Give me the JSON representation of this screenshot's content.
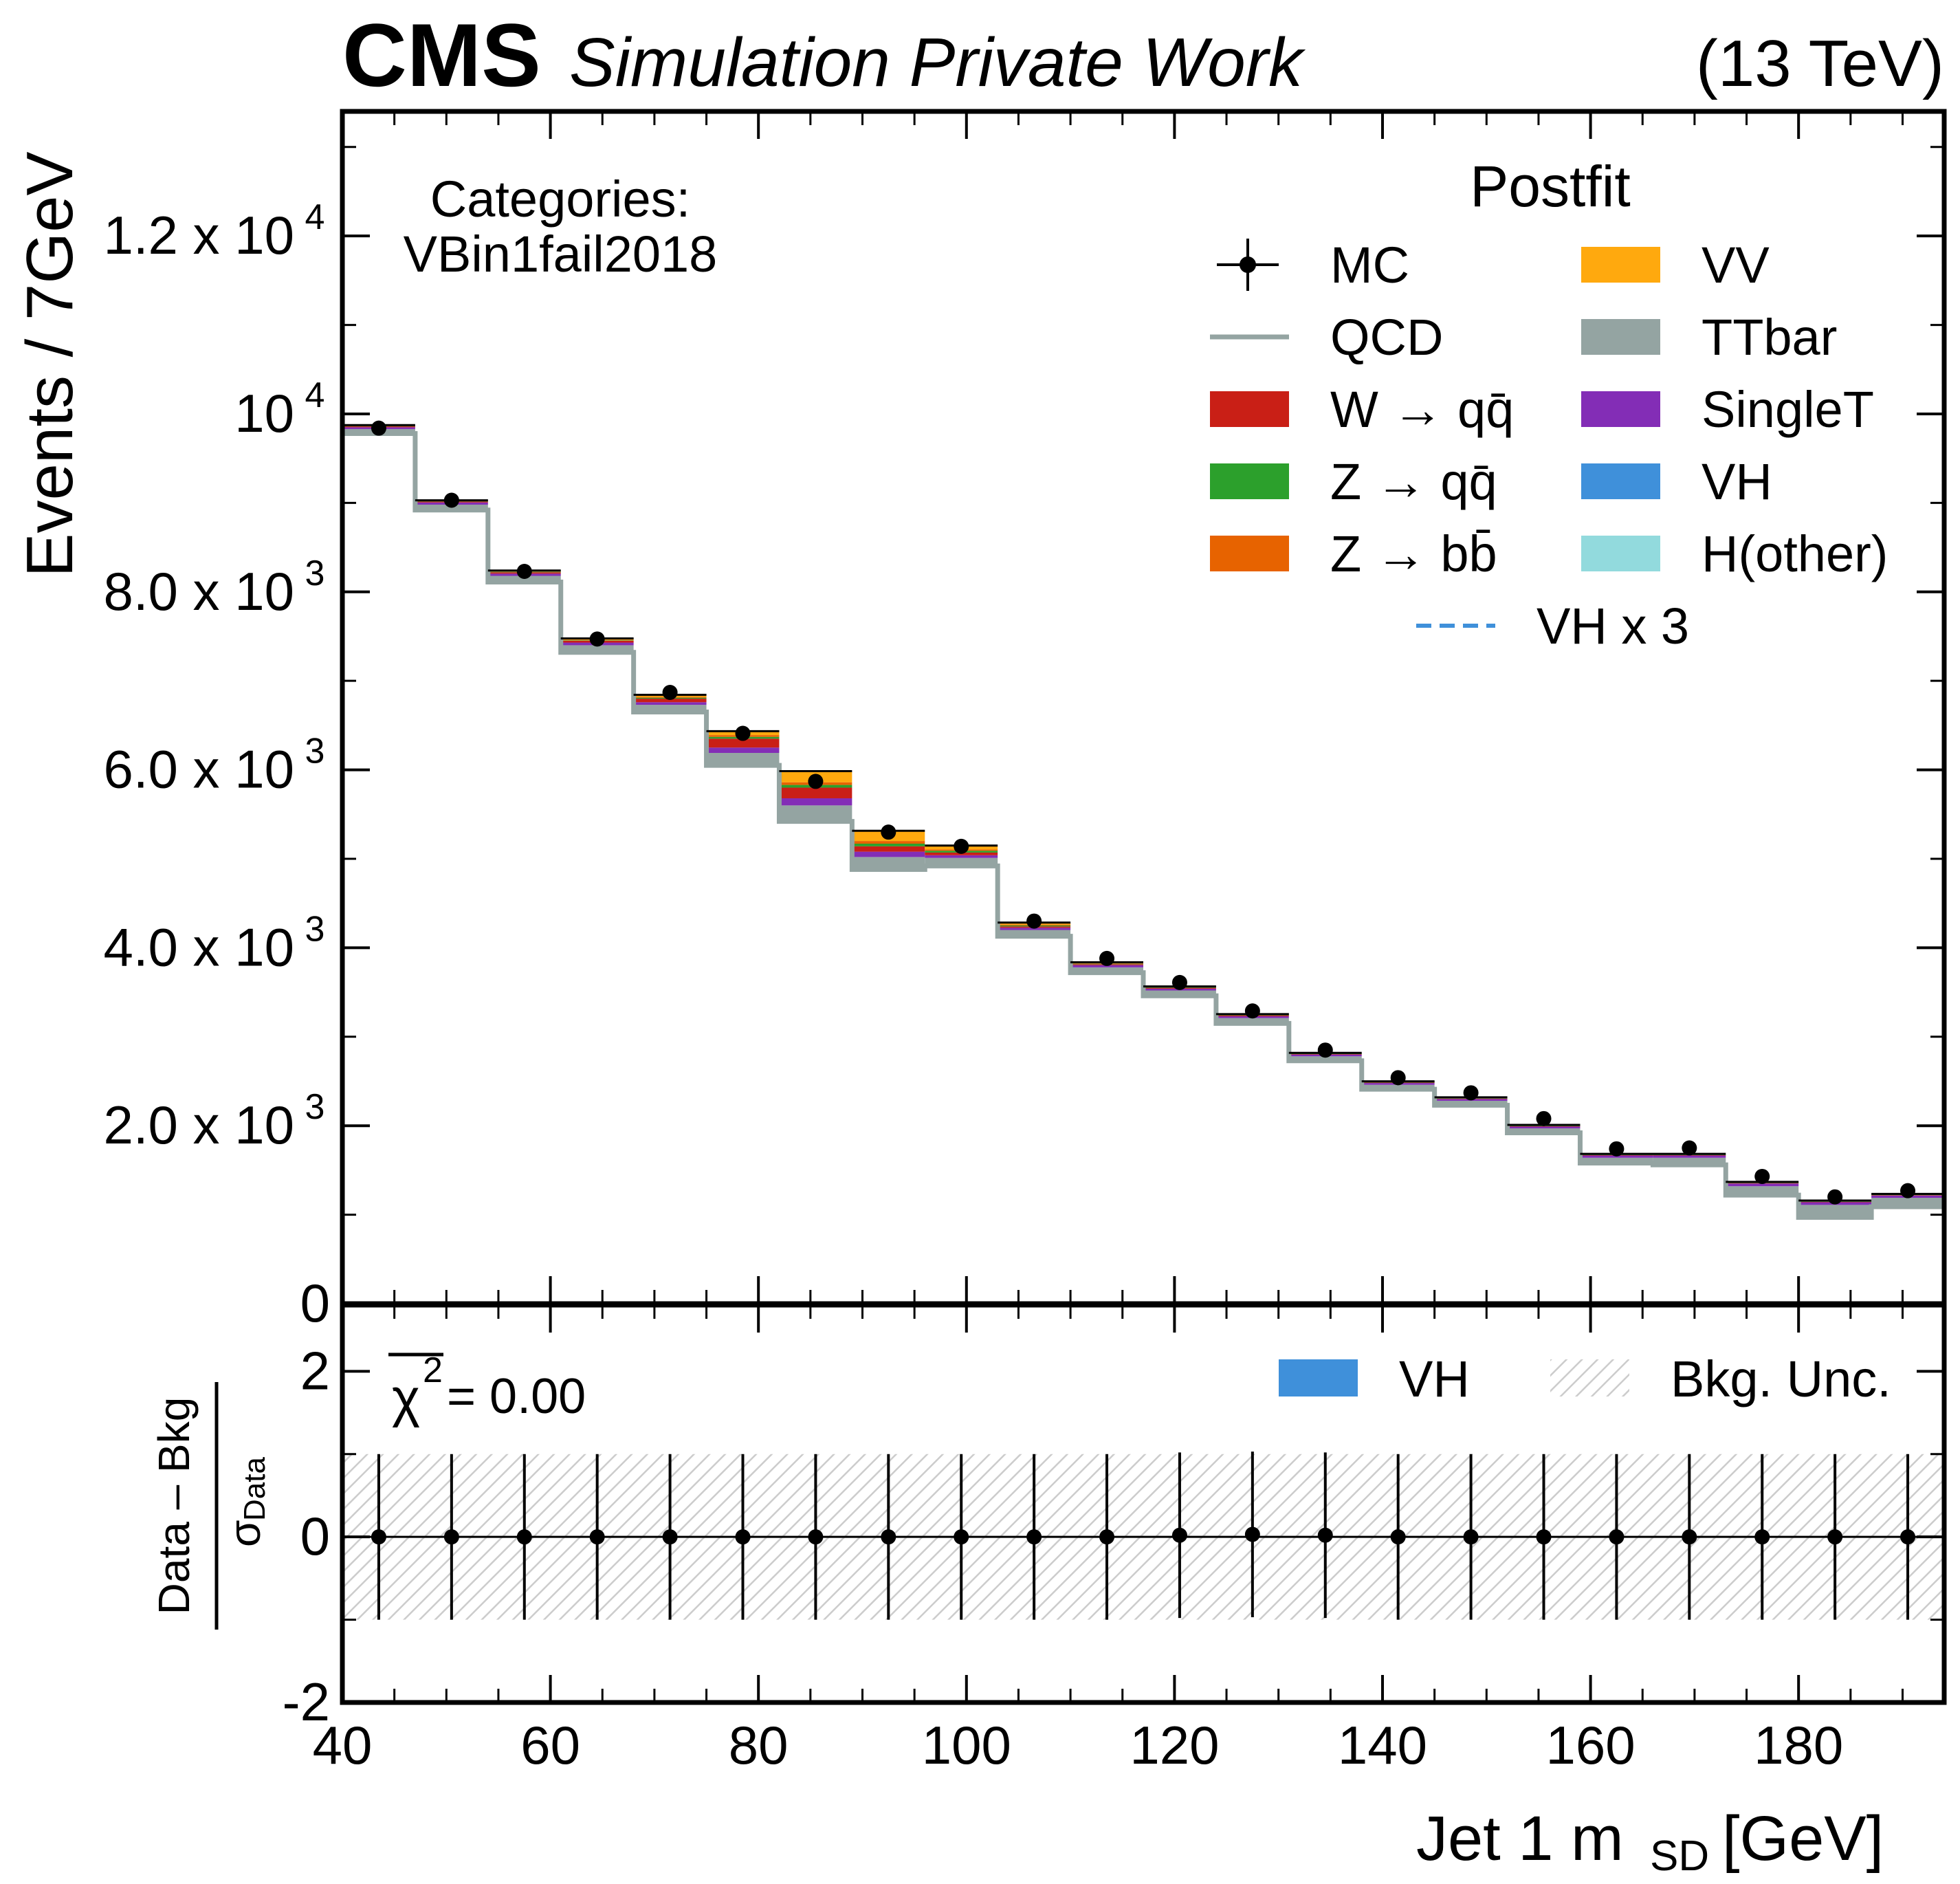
{
  "header": {
    "experiment": "CMS",
    "label": "Simulation Private Work",
    "energy": "(13 TeV)"
  },
  "main_panel": {
    "ylabel": "Events / 7GeV",
    "category_title": "Categories:",
    "category_name": "VBin1fail2018",
    "yticks": [
      {
        "mantissa": "0",
        "exp": "",
        "value": 0
      },
      {
        "mantissa": "2.0 x 10",
        "exp": "3",
        "value": 2000
      },
      {
        "mantissa": "4.0 x 10",
        "exp": "3",
        "value": 4000
      },
      {
        "mantissa": "6.0 x 10",
        "exp": "3",
        "value": 6000
      },
      {
        "mantissa": "8.0 x 10",
        "exp": "3",
        "value": 8000
      },
      {
        "mantissa": "10",
        "exp": "4",
        "value": 10000
      },
      {
        "mantissa": "1.2 x 10",
        "exp": "4",
        "value": 12000
      }
    ]
  },
  "legend": {
    "title": "Postfit",
    "entries": [
      {
        "label": "MC",
        "kind": "marker",
        "color": "#000000"
      },
      {
        "label": "QCD",
        "kind": "line",
        "color": "#94a4a2"
      },
      {
        "label": "W → qq̄",
        "kind": "patch",
        "color": "#c91f16"
      },
      {
        "label": "Z → qq̄",
        "kind": "patch",
        "color": "#2ca02c"
      },
      {
        "label": "Z → bb̄",
        "kind": "patch",
        "color": "#e76300"
      },
      {
        "label": "VV",
        "kind": "patch",
        "color": "#ffa90e"
      },
      {
        "label": "TTbar",
        "kind": "patch",
        "color": "#94a4a2"
      },
      {
        "label": "SingleT",
        "kind": "patch",
        "color": "#832db6"
      },
      {
        "label": "VH",
        "kind": "patch",
        "color": "#3f90da"
      },
      {
        "label": "H(other)",
        "kind": "patch",
        "color": "#92dadd"
      },
      {
        "label": "VH x 3",
        "kind": "dashed",
        "color": "#3f90da"
      }
    ]
  },
  "ratio_panel": {
    "ylabel_num": "Data – Bkg",
    "ylabel_den": "σ",
    "ylabel_den_sub": "Data",
    "chi2_label": "χ",
    "chi2_sup": "2",
    "chi2_value": " = 0.00",
    "legend": [
      {
        "label": "VH",
        "kind": "patch",
        "color": "#3f90da"
      },
      {
        "label": "Bkg. Unc.",
        "kind": "hatch",
        "color": "#c8c8c8"
      }
    ],
    "yticks": [
      "-2",
      "0",
      "2"
    ]
  },
  "x_axis": {
    "label_main": "Jet 1 m",
    "label_sub": "SD",
    "label_unit": " [GeV]",
    "ticks": [
      "40",
      "60",
      "80",
      "100",
      "120",
      "140",
      "160",
      "180"
    ]
  },
  "chart_data": {
    "type": "bar",
    "title": "",
    "xlabel": "Jet 1 m_SD [GeV]",
    "ylabel": "Events / 7GeV",
    "xlim": [
      40,
      194
    ],
    "ylim": [
      0,
      13400
    ],
    "ratio_ylim": [
      -2,
      2.8
    ],
    "bin_edges": [
      40,
      47,
      54,
      61,
      68,
      75,
      82,
      89,
      96,
      103,
      110,
      117,
      124,
      131,
      138,
      145,
      152,
      159,
      166,
      173,
      180,
      187,
      194
    ],
    "series": [
      {
        "name": "QCD",
        "color": "#94a4a2",
        "values": [
          9780,
          8920,
          8110,
          7320,
          6650,
          6050,
          5420,
          4880,
          4920,
          4130,
          3720,
          3460,
          3150,
          2730,
          2410,
          2230,
          1920,
          1580,
          1560,
          1220,
          970,
          1090
        ]
      },
      {
        "name": "TTbar",
        "color": "#94a4a2",
        "values": [
          50,
          60,
          70,
          80,
          80,
          140,
          180,
          140,
          90,
          70,
          60,
          60,
          60,
          50,
          50,
          50,
          50,
          60,
          80,
          100,
          140,
          100
        ]
      },
      {
        "name": "SingleT",
        "color": "#832db6",
        "values": [
          20,
          25,
          25,
          30,
          30,
          60,
          80,
          60,
          30,
          25,
          25,
          20,
          20,
          20,
          20,
          20,
          20,
          25,
          25,
          30,
          30,
          25
        ]
      },
      {
        "name": "W → qq̄",
        "color": "#c91f16",
        "values": [
          10,
          10,
          15,
          20,
          40,
          100,
          120,
          60,
          30,
          15,
          10,
          10,
          10,
          5,
          5,
          5,
          5,
          5,
          5,
          5,
          5,
          5
        ]
      },
      {
        "name": "Z → qq̄",
        "color": "#2ca02c",
        "values": [
          5,
          5,
          5,
          5,
          10,
          20,
          30,
          30,
          20,
          10,
          5,
          5,
          5,
          5,
          5,
          5,
          5,
          5,
          5,
          5,
          5,
          5
        ]
      },
      {
        "name": "Z → bb̄",
        "color": "#e76300",
        "values": [
          2,
          2,
          3,
          5,
          10,
          20,
          30,
          30,
          15,
          10,
          5,
          3,
          2,
          2,
          2,
          2,
          2,
          2,
          2,
          2,
          2,
          2
        ]
      },
      {
        "name": "VV",
        "color": "#ffa90e",
        "values": [
          5,
          5,
          10,
          15,
          20,
          40,
          120,
          110,
          40,
          20,
          10,
          5,
          5,
          5,
          5,
          5,
          5,
          5,
          5,
          5,
          5,
          5
        ]
      },
      {
        "name": "VH",
        "color": "#3f90da",
        "values": [
          1,
          1,
          1,
          1,
          2,
          3,
          4,
          4,
          3,
          2,
          1,
          1,
          1,
          1,
          1,
          1,
          1,
          1,
          1,
          1,
          1,
          1
        ]
      },
      {
        "name": "H(other)",
        "color": "#92dadd",
        "values": [
          1,
          1,
          1,
          1,
          1,
          1,
          1,
          1,
          1,
          1,
          1,
          1,
          1,
          1,
          1,
          1,
          1,
          1,
          1,
          1,
          1,
          1
        ]
      }
    ],
    "mc": {
      "name": "MC",
      "values": [
        9840,
        9030,
        8230,
        7470,
        6870,
        6410,
        5870,
        5300,
        5140,
        4300,
        3880,
        3610,
        3290,
        2850,
        2540,
        2370,
        2080,
        1740,
        1750,
        1430,
        1200,
        1270
      ]
    },
    "pull": {
      "values": [
        0,
        0,
        0,
        0,
        0,
        0,
        0,
        0,
        0,
        0,
        0,
        0.02,
        0.03,
        0.02,
        0,
        0,
        0,
        0,
        0,
        0,
        0,
        0
      ],
      "errors": [
        1,
        1,
        1,
        1,
        1,
        1,
        1,
        1,
        1,
        1,
        1,
        1,
        1,
        1,
        1,
        1,
        1,
        1,
        1,
        1,
        1,
        1
      ]
    },
    "bkg_unc": 1.0
  }
}
